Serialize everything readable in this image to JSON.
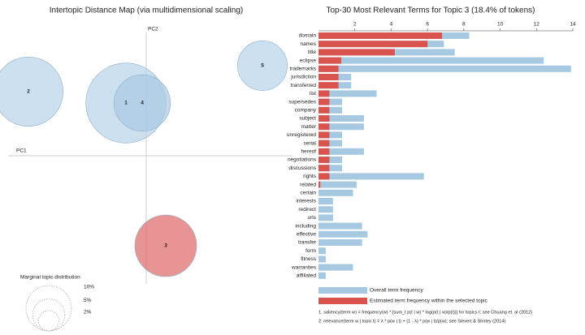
{
  "chart_data": [
    {
      "type": "bubble",
      "title": "Intertopic Distance Map (via multidimensional scaling)",
      "xlabel": "PC1",
      "ylabel": "PC2",
      "labels": [
        "1",
        "2",
        "3",
        "4",
        "5"
      ],
      "x": [
        -0.0625,
        -0.3625,
        0.06,
        -0.0125,
        0.3575
      ],
      "values": [
        0.1625,
        0.1975,
        -0.2775,
        0.1625,
        0.2775
      ],
      "sizes": [
        31,
        23.2,
        18.4,
        15.4,
        12
      ],
      "colors": [
        "#b7d3e9",
        "#b7d3e9",
        "#e06666",
        "#a9c9e3",
        "#b7d3e9"
      ],
      "xlim": [
        -0.45,
        0.45
      ],
      "ylim": [
        -0.395,
        0.405
      ],
      "marginal": {
        "title": "Marginal topic distribution",
        "sizes": [
          2,
          5,
          10
        ],
        "value_labels": [
          "2%",
          "5%",
          "10%"
        ]
      }
    },
    {
      "type": "bar",
      "orientation": "horizontal",
      "title": "Top-30 Most Relevant Terms for Topic 3 (18.4% of tokens)",
      "categories": [
        "domain",
        "names",
        "title",
        "eclipse",
        "trademarks",
        "jurisdiction",
        "transferred",
        "list",
        "supersedes",
        "company",
        "subject",
        "matter",
        "unregistered",
        "serial",
        "hereof",
        "negotiations",
        "discussions",
        "rights",
        "related",
        "certain",
        "interests",
        "redirect",
        "urls",
        "including",
        "effective",
        "transfer",
        "form",
        "fitness",
        "warranties",
        "affiliated"
      ],
      "series": [
        {
          "name": "Overall term frequency",
          "color": "#a6c8e0",
          "values": [
            8.3,
            6.9,
            7.5,
            12.4,
            13.9,
            1.8,
            1.8,
            3.2,
            1.3,
            1.3,
            2.5,
            2.5,
            1.3,
            1.3,
            2.5,
            1.3,
            1.3,
            5.8,
            2.1,
            1.9,
            0.8,
            0.8,
            0.8,
            2.4,
            2.7,
            2.4,
            0.4,
            0.4,
            1.9,
            0.4
          ]
        },
        {
          "name": "Estimated term frequency within the selected topic",
          "color": "#d9534f",
          "values": [
            6.8,
            6.0,
            4.2,
            1.25,
            1.1,
            1.1,
            1.1,
            0.6,
            0.6,
            0.6,
            0.6,
            0.6,
            0.6,
            0.6,
            0.6,
            0.6,
            0.6,
            0.6,
            0.1,
            0,
            0,
            0,
            0,
            0,
            0,
            0,
            0,
            0,
            0,
            0
          ]
        }
      ],
      "xlim": [
        0,
        14
      ],
      "xticks": [
        2,
        4,
        6,
        8,
        10,
        12,
        14
      ],
      "notes": [
        "1. saliency(term w) = frequency(w) * [sum_t p(t | w) * log(p(t | w)/p(t))] for topics t; see Chuang et. al (2012)",
        "2. relevance(term w | topic t) = λ * p(w | t) + (1 - λ) * p(w | t)/p(w); see Sievert & Shirley (2014)"
      ]
    }
  ]
}
